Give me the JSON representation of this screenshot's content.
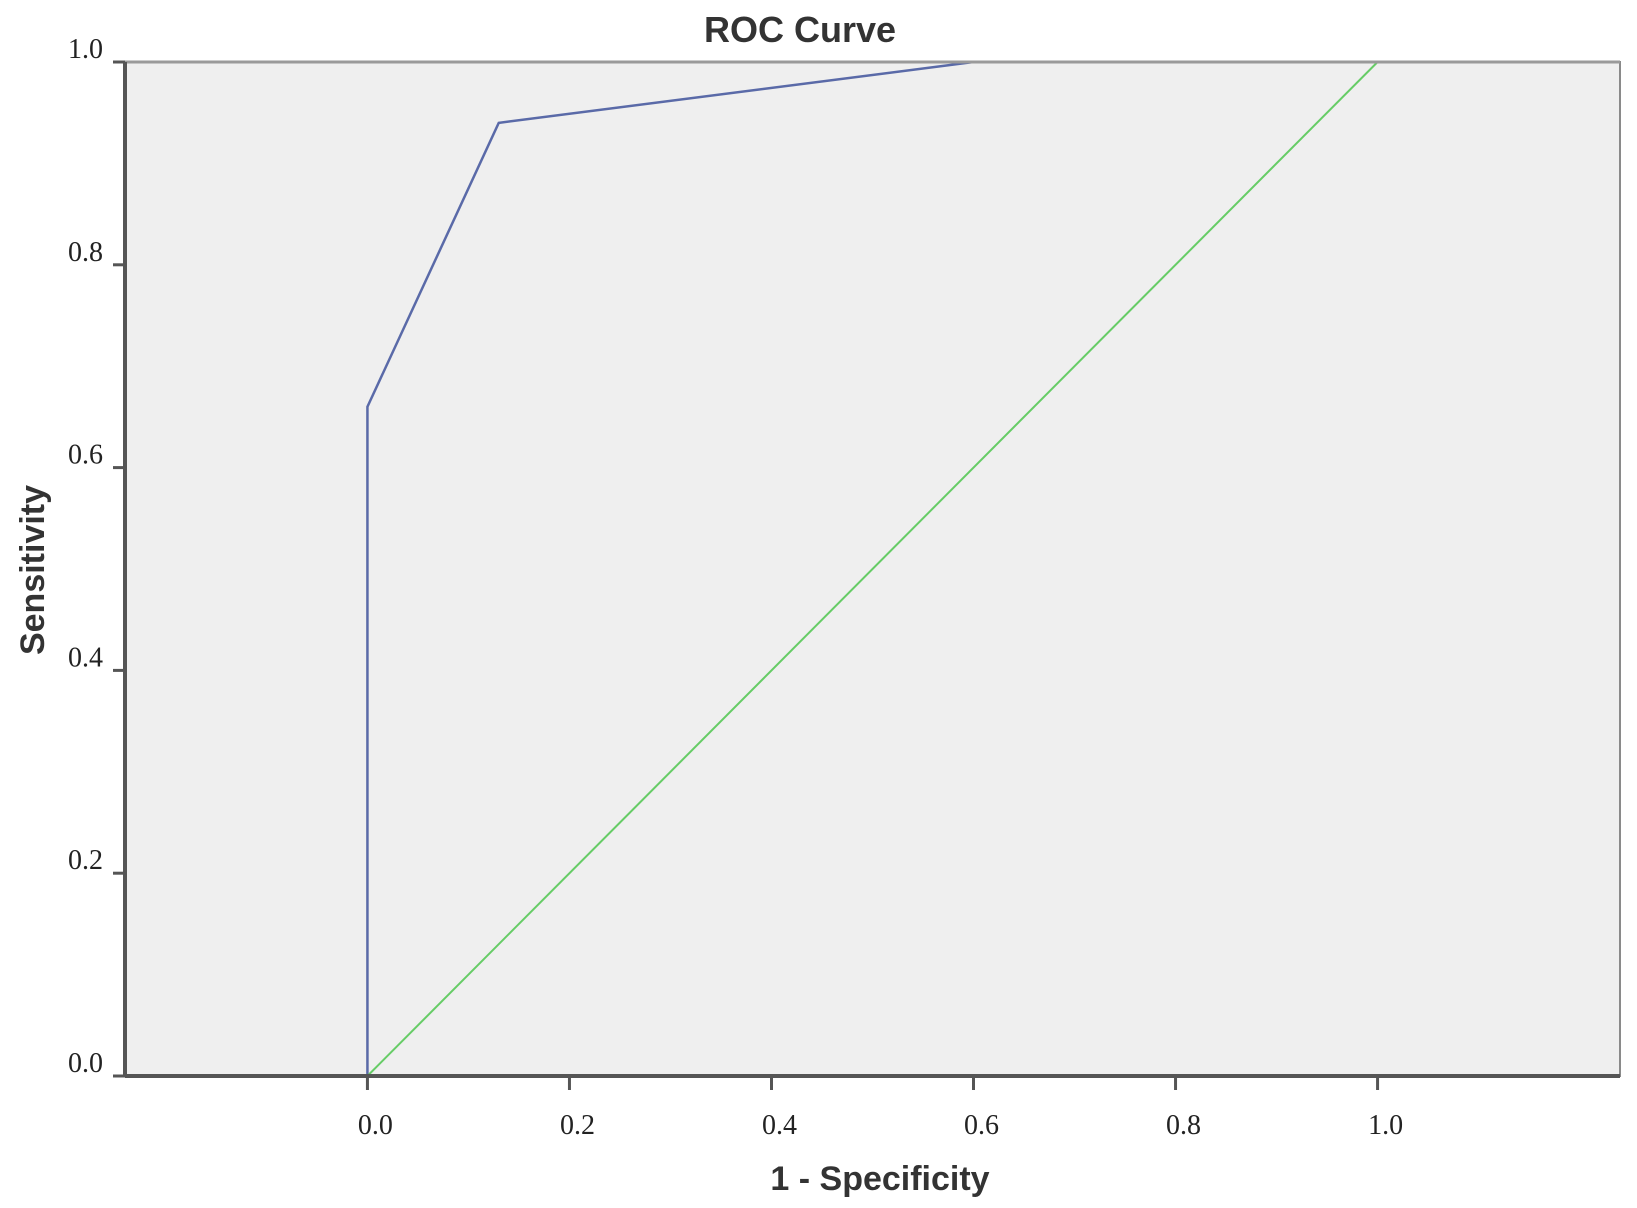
{
  "chart_data": {
    "type": "line",
    "title": "ROC Curve",
    "xlabel": "1 - Specificity",
    "ylabel": "Sensitivity",
    "xlim": [
      -0.24,
      1.24
    ],
    "ylim": [
      0,
      1
    ],
    "x_ticks": [
      0.0,
      0.2,
      0.4,
      0.6,
      0.8,
      1.0
    ],
    "x_tick_labels": [
      "0.0",
      "0.2",
      "0.4",
      "0.6",
      "0.8",
      "1.0"
    ],
    "y_ticks": [
      0.0,
      0.2,
      0.4,
      0.6,
      0.8,
      1.0
    ],
    "y_tick_labels": [
      "0.0",
      "0.2",
      "0.4",
      "0.6",
      "0.8",
      "1.0"
    ],
    "grid": false,
    "legend": "none",
    "series": [
      {
        "color": "#5a6aa8",
        "x": [
          0.0,
          0.0,
          0.13,
          0.6,
          1.0
        ],
        "y": [
          0.0,
          0.66,
          0.94,
          1.0,
          1.0
        ]
      },
      {
        "color": "#66cc66",
        "x": [
          0.0,
          1.0
        ],
        "y": [
          0.0,
          1.0
        ]
      }
    ]
  },
  "colors": {
    "plot_background": "#efefef",
    "axis": "#555555"
  }
}
